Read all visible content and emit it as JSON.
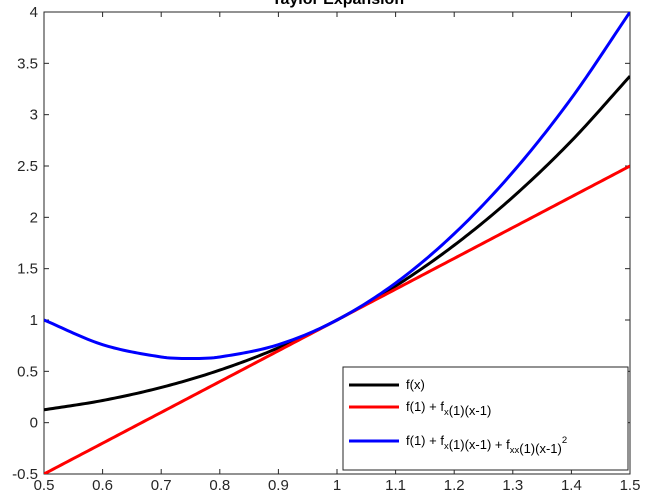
{
  "chart_data": {
    "type": "line",
    "title": "Taylor Expansion",
    "xlabel": "",
    "ylabel": "",
    "xlim": [
      0.5,
      1.5
    ],
    "ylim": [
      -0.5,
      4
    ],
    "xticks": [
      "0.5",
      "0.6",
      "0.7",
      "0.8",
      "0.9",
      "1",
      "1.1",
      "1.2",
      "1.3",
      "1.4",
      "1.5"
    ],
    "yticks": [
      "-0.5",
      "0",
      "0.5",
      "1",
      "1.5",
      "2",
      "2.5",
      "3",
      "3.5",
      "4"
    ],
    "grid": false,
    "legend_position": "bottom-right",
    "series": [
      {
        "name": "f(x)",
        "color": "#000000",
        "x": [
          0.5,
          0.6,
          0.7,
          0.8,
          0.9,
          1.0,
          1.1,
          1.2,
          1.3,
          1.4,
          1.5
        ],
        "y": [
          0.125,
          0.216,
          0.343,
          0.512,
          0.729,
          1.0,
          1.331,
          1.728,
          2.197,
          2.744,
          3.375
        ]
      },
      {
        "name": "f(1) + f_x(1)(x-1)",
        "color": "#ff0000",
        "x": [
          0.5,
          1.0,
          1.5
        ],
        "y": [
          -0.5,
          1.0,
          2.5
        ]
      },
      {
        "name": "f(1) + f_x(1)(x-1) + f_xx(1)(x-1)^2",
        "color": "#0000ff",
        "x": [
          0.5,
          0.6,
          0.7,
          0.75,
          0.8,
          0.9,
          1.0,
          1.1,
          1.2,
          1.3,
          1.4,
          1.5
        ],
        "y": [
          1.0,
          0.76,
          0.64,
          0.625,
          0.64,
          0.76,
          1.0,
          1.36,
          1.84,
          2.44,
          3.16,
          4.0
        ]
      }
    ],
    "legend_entries": [
      {
        "parts": [
          [
            "f(x)",
            ""
          ]
        ]
      },
      {
        "parts": [
          [
            "f(1) + f",
            ""
          ],
          [
            "x",
            "sub"
          ],
          [
            "(1)(x-1)",
            ""
          ]
        ]
      },
      {
        "parts": [
          [
            "f(1) + f",
            ""
          ],
          [
            "x",
            "sub"
          ],
          [
            "(1)(x-1) + f",
            ""
          ],
          [
            "xx",
            "sub"
          ],
          [
            "(1)(x-1)",
            ""
          ],
          [
            "2",
            "sup"
          ]
        ]
      }
    ]
  }
}
